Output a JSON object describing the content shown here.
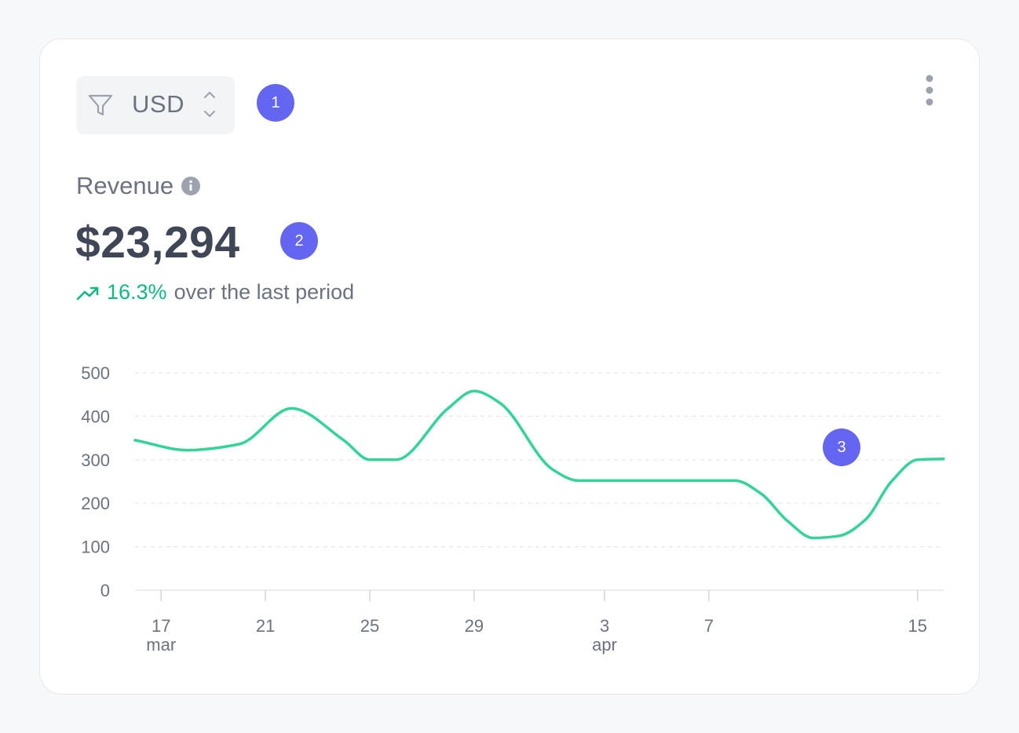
{
  "toolbar": {
    "currency": "USD",
    "filter_icon": "filter-icon",
    "menu_icon": "more-vertical-icon"
  },
  "badges": [
    "1",
    "2",
    "3"
  ],
  "metric": {
    "label": "Revenue",
    "info_icon": "info-icon",
    "value": "$23,294",
    "trend_icon": "trending-up-icon",
    "change": "16.3%",
    "change_text": "over the last period",
    "trend_color": "#10b981"
  },
  "chart_data": {
    "type": "line",
    "title": "",
    "xlabel": "",
    "ylabel": "",
    "ylim": [
      0,
      500
    ],
    "y_ticks": [
      0,
      100,
      200,
      300,
      400,
      500
    ],
    "xlim": [
      "2024-03-16",
      "2024-04-16"
    ],
    "x_ticks": [
      {
        "date": "2024-03-17",
        "label": "17",
        "sublabel": "mar"
      },
      {
        "date": "2024-03-21",
        "label": "21",
        "sublabel": ""
      },
      {
        "date": "2024-03-25",
        "label": "25",
        "sublabel": ""
      },
      {
        "date": "2024-03-29",
        "label": "29",
        "sublabel": ""
      },
      {
        "date": "2024-04-03",
        "label": "3",
        "sublabel": "apr"
      },
      {
        "date": "2024-04-07",
        "label": "7",
        "sublabel": ""
      },
      {
        "date": "2024-04-15",
        "label": "15",
        "sublabel": ""
      }
    ],
    "grid": true,
    "series": [
      {
        "color": "#34d399",
        "x": [
          "2024-03-16",
          "2024-03-18",
          "2024-03-20",
          "2024-03-22",
          "2024-03-24",
          "2024-03-25",
          "2024-03-26",
          "2024-03-28",
          "2024-03-29",
          "2024-03-30",
          "2024-04-01",
          "2024-04-02",
          "2024-04-04",
          "2024-04-06",
          "2024-04-08",
          "2024-04-09",
          "2024-04-10",
          "2024-04-11",
          "2024-04-12",
          "2024-04-13",
          "2024-04-14",
          "2024-04-15",
          "2024-04-16"
        ],
        "y": [
          345,
          322,
          336,
          418,
          345,
          300,
          300,
          418,
          458,
          430,
          278,
          252,
          252,
          252,
          252,
          222,
          160,
          120,
          125,
          162,
          250,
          300,
          302
        ]
      }
    ]
  }
}
